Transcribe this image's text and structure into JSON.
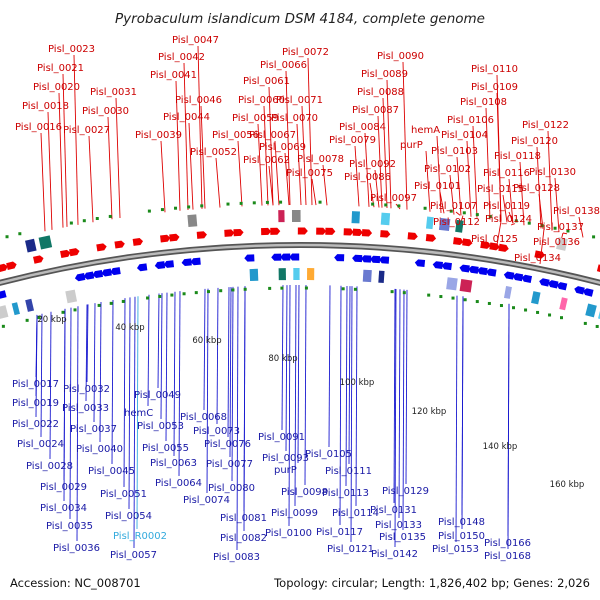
{
  "title": "Pyrobaculum islandicum DSM 4184, complete genome",
  "accession": "Accession: NC_008701",
  "summary": "Topology: circular; Length: 1,826,402 bp; Genes: 2,026",
  "colors": {
    "top_strand": "#ee0000",
    "bottom_strand": "#0000ee",
    "rna": "#33aadd",
    "backbone": "#888888"
  },
  "scale_labels": [
    "20 kbp",
    "40 kbp",
    "60 kbp",
    "80 kbp",
    "100 kbp",
    "120 kbp",
    "140 kbp",
    "160 kbp"
  ],
  "top_labels": [
    "Pisl_0023",
    "Pisl_0021",
    "Pisl_0020",
    "Pisl_0018",
    "Pisl_0016",
    "Pisl_0031",
    "Pisl_0030",
    "Pisl_0027",
    "Pisl_0047",
    "Pisl_0042",
    "Pisl_0041",
    "Pisl_0046",
    "Pisl_0044",
    "Pisl_0039",
    "Pisl_0061",
    "Pisl_0060",
    "Pisl_0059",
    "Pisl_0056",
    "Pisl_0052",
    "Pisl_0066",
    "Pisl_0062",
    "Pisl_0072",
    "Pisl_0071",
    "Pisl_0070",
    "Pisl_0067",
    "Pisl_0069",
    "Pisl_0079",
    "Pisl_0078",
    "Pisl_0075",
    "Pisl_0090",
    "Pisl_0089",
    "Pisl_0088",
    "Pisl_0087",
    "Pisl_0084",
    "Pisl_0092",
    "Pisl_0086",
    "hemA",
    "purP",
    "Pisl_0097",
    "Pisl_0110",
    "Pisl_0109",
    "Pisl_0108",
    "Pisl_0106",
    "Pisl_0104",
    "Pisl_0103",
    "Pisl_0102",
    "Pisl_0101",
    "Pisl_0107",
    "Pisl_0112",
    "Pisl_0122",
    "Pisl_0120",
    "Pisl_0118",
    "Pisl_0116",
    "Pisl_0115",
    "Pisl_0119",
    "Pisl_0124",
    "Pisl_0125",
    "Pisl_0130",
    "Pisl_0128",
    "Pisl_0138",
    "Pisl_0137",
    "Pisl_0136",
    "Pisl_0134"
  ],
  "bottom_labels": [
    "Pisl_0017",
    "Pisl_0019",
    "Pisl_0022",
    "Pisl_0024",
    "Pisl_0028",
    "Pisl_0029",
    "Pisl_0034",
    "Pisl_0035",
    "Pisl_0036",
    "Pisl_0032",
    "Pisl_0033",
    "Pisl_0037",
    "Pisl_0040",
    "Pisl_0045",
    "Pisl_0051",
    "Pisl_0054",
    "Pisl_0049",
    "hemC",
    "Pisl_0053",
    "Pisl_0055",
    "Pisl_0057",
    "Pisl_0063",
    "Pisl_0064",
    "Pisl_0068",
    "Pisl_0073",
    "Pisl_0076",
    "Pisl_0077",
    "Pisl_0074",
    "Pisl_0080",
    "Pisl_0081",
    "Pisl_0082",
    "Pisl_0083",
    "Pisl_0091",
    "Pisl_0093",
    "purP",
    "Pisl_0098",
    "Pisl_0099",
    "Pisl_0100",
    "Pisl_0105",
    "Pisl_0111",
    "Pisl_0113",
    "Pisl_0114",
    "Pisl_0117",
    "Pisl_0121",
    "Pisl_0129",
    "Pisl_0131",
    "Pisl_0133",
    "Pisl_0135",
    "Pisl_0142",
    "Pisl_0148",
    "Pisl_0150",
    "Pisl_0153",
    "Pisl_0166",
    "Pisl_0168"
  ],
  "rna_labels": [
    "Pisl_R0002"
  ]
}
